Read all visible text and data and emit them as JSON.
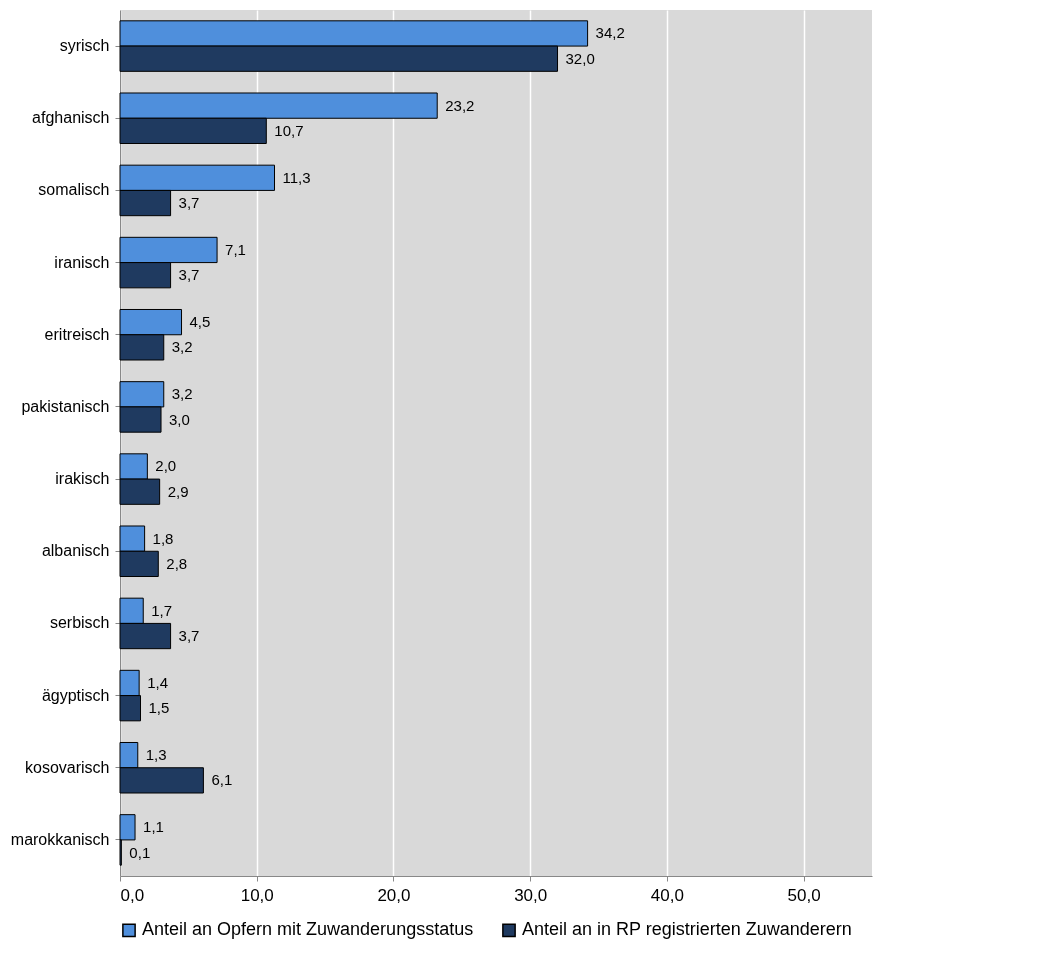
{
  "chart_data": {
    "type": "bar",
    "orientation": "horizontal",
    "categories": [
      "syrisch",
      "afghanisch",
      "somalisch",
      "iranisch",
      "eritreisch",
      "pakistanisch",
      "irakisch",
      "albanisch",
      "serbisch",
      "ägyptisch",
      "kosovarisch",
      "marokkanisch"
    ],
    "series": [
      {
        "name": "Anteil an Opfern mit Zuwanderungsstatus",
        "color": "#4f8fdc",
        "values": [
          34.2,
          23.2,
          11.3,
          7.1,
          4.5,
          3.2,
          2.0,
          1.8,
          1.7,
          1.4,
          1.3,
          1.1
        ],
        "value_labels": [
          "34,2",
          "23,2",
          "11,3",
          "7,1",
          "4,5",
          "3,2",
          "2,0",
          "1,8",
          "1,7",
          "1,4",
          "1,3",
          "1,1"
        ]
      },
      {
        "name": "Anteil an in RP registrierten Zuwanderern",
        "color": "#1f3a60",
        "values": [
          32.0,
          10.7,
          3.7,
          3.7,
          3.2,
          3.0,
          2.9,
          2.8,
          3.7,
          1.5,
          6.1,
          0.1
        ],
        "value_labels": [
          "32,0",
          "10,7",
          "3,7",
          "3,7",
          "3,2",
          "3,0",
          "2,9",
          "2,8",
          "3,7",
          "1,5",
          "6,1",
          "0,1"
        ]
      }
    ],
    "xlim": [
      0,
      55
    ],
    "xticks": [
      {
        "value": 0,
        "label": "0,0"
      },
      {
        "value": 10,
        "label": "10,0"
      },
      {
        "value": 20,
        "label": "20,0"
      },
      {
        "value": 30,
        "label": "30,0"
      },
      {
        "value": 40,
        "label": "40,0"
      },
      {
        "value": 50,
        "label": "50,0"
      }
    ],
    "grid": "x",
    "legend": "bottom"
  }
}
